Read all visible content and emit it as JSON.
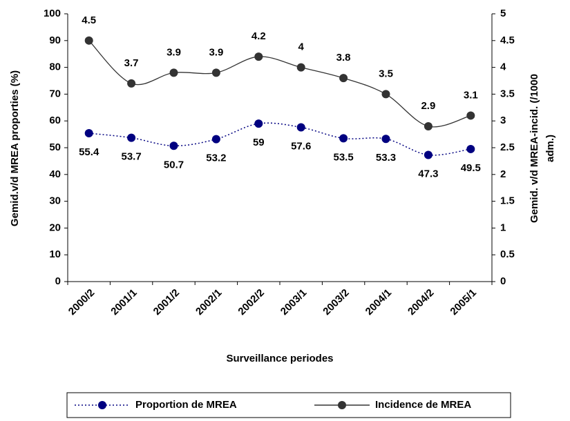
{
  "chart_data": {
    "type": "line",
    "xlabel": "Surveillance periodes",
    "ylabel": "Gemid.v/d MREA proporties  (%)",
    "y2label": [
      "Gemid. v/d MREA-incid. (/1000",
      "adm.)"
    ],
    "categories": [
      "2000/2",
      "2001/1",
      "2001/2",
      "2002/1",
      "2002/2",
      "2003/1",
      "2003/2",
      "2004/1",
      "2004/2",
      "2005/1"
    ],
    "series": [
      {
        "name": "Proportion de MREA",
        "color": "#000080",
        "dash": "dotted",
        "axis": "y",
        "values": [
          55.4,
          53.7,
          50.7,
          53.2,
          59,
          57.6,
          53.5,
          53.3,
          47.3,
          49.5
        ]
      },
      {
        "name": "Incidence de MREA",
        "color": "#333333",
        "dash": "solid",
        "axis": "y2",
        "values": [
          4.5,
          3.7,
          3.9,
          3.9,
          4.2,
          4,
          3.8,
          3.5,
          2.9,
          3.1
        ]
      }
    ],
    "ylim": [
      0,
      100
    ],
    "yticks": [
      0,
      10,
      20,
      30,
      40,
      50,
      60,
      70,
      80,
      90,
      100
    ],
    "y2lim": [
      0,
      5
    ],
    "y2ticks": [
      0,
      0.5,
      1,
      1.5,
      2,
      2.5,
      3,
      3.5,
      4,
      4.5,
      5
    ],
    "legend": "bottom"
  }
}
